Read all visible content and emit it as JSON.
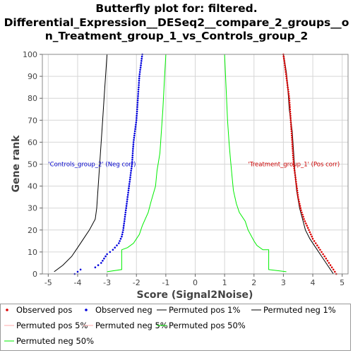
{
  "chart_data": {
    "type": "line",
    "title": [
      "Butterfly plot for: filtered.",
      "Differential_Expression__DESeq2__compare_2_groups__o",
      "n_Treatment_group_1_vs_Controls_group_2"
    ],
    "xlabel": "Score (Signal2Noise)",
    "ylabel": "Gene rank",
    "xlim": [
      -5.2,
      5.2
    ],
    "ylim": [
      0,
      100
    ],
    "xticks": [
      "-5",
      "-4",
      "-3",
      "-2",
      "-1",
      "0",
      "1",
      "2",
      "3",
      "4",
      "5"
    ],
    "yticks": [
      "0",
      "10",
      "20",
      "30",
      "40",
      "50",
      "60",
      "70",
      "80",
      "90",
      "100"
    ],
    "grid": true,
    "legend_placement": "bottom",
    "annotations": [
      {
        "text": "'Controls_group_2' (Neg corr)",
        "x": -5.0,
        "y": 50,
        "color": "#0000cc"
      },
      {
        "text": "'Treatment_group_1' (Pos corr)",
        "x": 1.8,
        "y": 50,
        "color": "#cc0000"
      }
    ],
    "series": [
      {
        "name": "Observed pos",
        "style": "dots",
        "color": "#dd0000",
        "points": [
          [
            4.8,
            0
          ],
          [
            4.7,
            2
          ],
          [
            4.6,
            4
          ],
          [
            4.5,
            6
          ],
          [
            4.4,
            8
          ],
          [
            4.3,
            10
          ],
          [
            4.2,
            12
          ],
          [
            4.1,
            14
          ],
          [
            4.0,
            16
          ],
          [
            3.9,
            19
          ],
          [
            3.8,
            22
          ],
          [
            3.7,
            25
          ],
          [
            3.6,
            29
          ],
          [
            3.5,
            35
          ],
          [
            3.45,
            40
          ],
          [
            3.4,
            45
          ],
          [
            3.35,
            50
          ],
          [
            3.3,
            60
          ],
          [
            3.25,
            70
          ],
          [
            3.2,
            80
          ],
          [
            3.1,
            90
          ],
          [
            3.05,
            95
          ],
          [
            3.0,
            100
          ]
        ]
      },
      {
        "name": "Observed neg",
        "style": "dots",
        "color": "#0000dd",
        "points": [
          [
            -4.1,
            0
          ],
          [
            -3.9,
            2
          ],
          [
            -3.4,
            3
          ],
          [
            -3.2,
            5
          ],
          [
            -3.1,
            7
          ],
          [
            -3.0,
            9
          ],
          [
            -2.8,
            11
          ],
          [
            -2.6,
            14
          ],
          [
            -2.5,
            17
          ],
          [
            -2.45,
            20
          ],
          [
            -2.4,
            25
          ],
          [
            -2.35,
            30
          ],
          [
            -2.3,
            35
          ],
          [
            -2.25,
            40
          ],
          [
            -2.2,
            45
          ],
          [
            -2.15,
            50
          ],
          [
            -2.1,
            60
          ],
          [
            -2.05,
            65
          ],
          [
            -2.0,
            70
          ],
          [
            -1.95,
            80
          ],
          [
            -1.9,
            90
          ],
          [
            -1.85,
            95
          ],
          [
            -1.8,
            100
          ]
        ]
      },
      {
        "name": "Permuted pos 1%",
        "style": "line",
        "color": "#000000",
        "points": [
          [
            4.7,
            0
          ],
          [
            4.5,
            4
          ],
          [
            4.3,
            8
          ],
          [
            4.1,
            12
          ],
          [
            3.9,
            16
          ],
          [
            3.75,
            20
          ],
          [
            3.65,
            25
          ],
          [
            3.55,
            30
          ],
          [
            3.45,
            38
          ],
          [
            3.4,
            45
          ],
          [
            3.35,
            55
          ],
          [
            3.3,
            65
          ],
          [
            3.2,
            75
          ],
          [
            3.15,
            85
          ],
          [
            3.1,
            92
          ],
          [
            3.0,
            100
          ]
        ]
      },
      {
        "name": "Permuted neg 1%",
        "style": "line",
        "color": "#000000",
        "points": [
          [
            -4.8,
            1
          ],
          [
            -4.5,
            4
          ],
          [
            -4.2,
            8
          ],
          [
            -4.0,
            12
          ],
          [
            -3.8,
            16
          ],
          [
            -3.6,
            20
          ],
          [
            -3.4,
            25
          ],
          [
            -3.35,
            30
          ],
          [
            -3.3,
            40
          ],
          [
            -3.25,
            50
          ],
          [
            -3.2,
            60
          ],
          [
            -3.15,
            70
          ],
          [
            -3.1,
            80
          ],
          [
            -3.05,
            90
          ],
          [
            -3.0,
            100
          ]
        ]
      },
      {
        "name": "Permuted pos 5%",
        "style": "line",
        "color": "#ffaaaa",
        "points": []
      },
      {
        "name": "Permuted neg 5%",
        "style": "line",
        "color": "#ffaaaa",
        "points": []
      },
      {
        "name": "Permuted pos 50%",
        "style": "line",
        "color": "#00ee00",
        "points": [
          [
            3.1,
            1
          ],
          [
            2.5,
            2
          ],
          [
            2.5,
            11
          ],
          [
            2.3,
            11
          ],
          [
            2.1,
            13
          ],
          [
            2.0,
            15
          ],
          [
            1.8,
            20
          ],
          [
            1.7,
            24
          ],
          [
            1.5,
            28
          ],
          [
            1.4,
            32
          ],
          [
            1.3,
            38
          ],
          [
            1.25,
            45
          ],
          [
            1.2,
            52
          ],
          [
            1.15,
            60
          ],
          [
            1.1,
            70
          ],
          [
            1.05,
            85
          ],
          [
            1.0,
            100
          ]
        ]
      },
      {
        "name": "Permuted neg 50%",
        "style": "line",
        "color": "#00ee00",
        "points": [
          [
            -3.0,
            1
          ],
          [
            -2.5,
            2
          ],
          [
            -2.5,
            11
          ],
          [
            -2.3,
            12
          ],
          [
            -2.1,
            14
          ],
          [
            -1.9,
            18
          ],
          [
            -1.8,
            22
          ],
          [
            -1.6,
            28
          ],
          [
            -1.5,
            33
          ],
          [
            -1.35,
            40
          ],
          [
            -1.3,
            47
          ],
          [
            -1.2,
            55
          ],
          [
            -1.15,
            65
          ],
          [
            -1.1,
            75
          ],
          [
            -1.05,
            88
          ],
          [
            -1.0,
            100
          ]
        ]
      }
    ],
    "legend": [
      {
        "label": "Observed pos",
        "kind": "dot",
        "color": "#dd0000"
      },
      {
        "label": "Observed neg",
        "kind": "dot",
        "color": "#0000dd"
      },
      {
        "label": "Permuted pos 1%",
        "kind": "line",
        "color": "#000000"
      },
      {
        "label": "Permuted neg 1%",
        "kind": "line",
        "color": "#000000"
      },
      {
        "label": "Permuted pos 5%",
        "kind": "line",
        "color": "#ffaaaa"
      },
      {
        "label": "Permuted neg 5%",
        "kind": "line",
        "color": "#ffaaaa"
      },
      {
        "label": "Permuted pos 50%",
        "kind": "line",
        "color": "#00ee00"
      },
      {
        "label": "Permuted neg 50%",
        "kind": "line",
        "color": "#00ee00"
      }
    ]
  }
}
